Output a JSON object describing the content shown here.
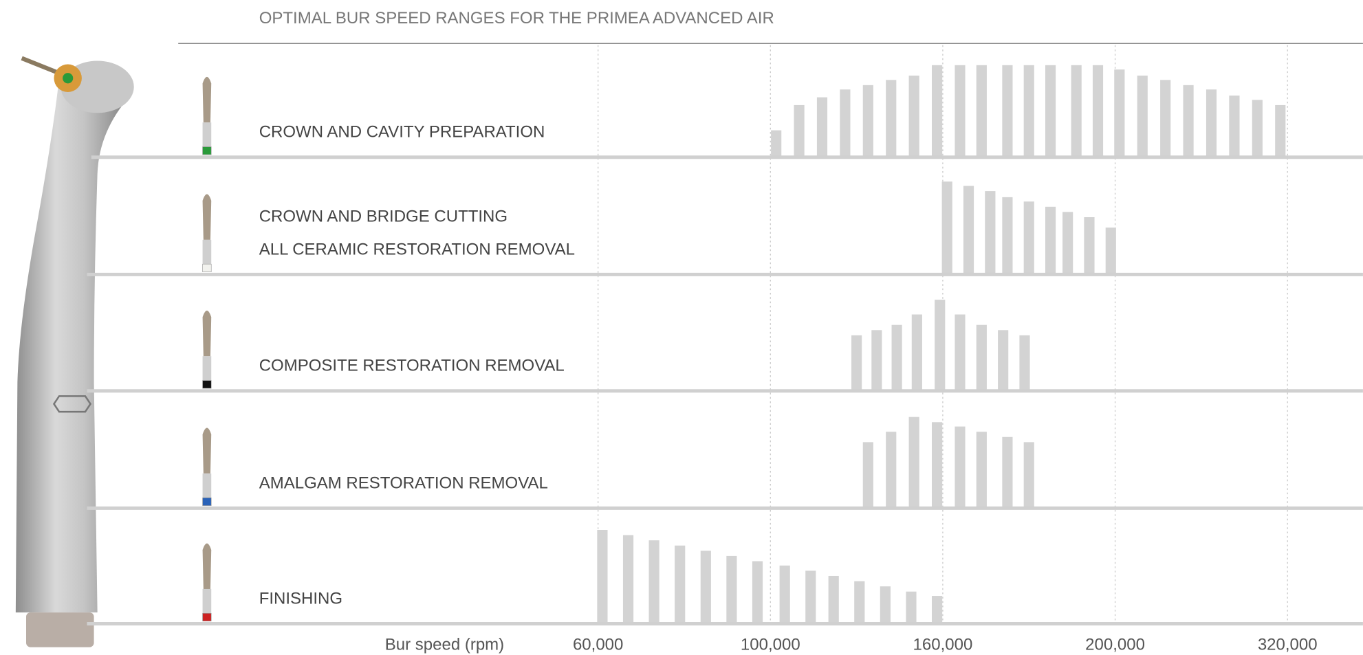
{
  "chart_data": {
    "type": "bar",
    "title": "OPTIMAL BUR SPEED RANGES FOR THE PRIMEA ADVANCED AIR",
    "xlabel": "Bur speed (rpm)",
    "color": "#d3d3d3",
    "xlim": [
      60000,
      320000
    ],
    "ylim": [
      0,
      130
    ],
    "xticks": [
      {
        "value": 60000,
        "label": "60,000"
      },
      {
        "value": 100000,
        "label": "100,000"
      },
      {
        "value": 160000,
        "label": "160,000"
      },
      {
        "value": 200000,
        "label": "200,000"
      },
      {
        "value": 320000,
        "label": "320,000"
      }
    ],
    "series": [
      {
        "labels": [
          "CROWN AND CAVITY PREPARATION"
        ],
        "bur_color": "#2a9a3a",
        "x": [
          102000,
          110000,
          118000,
          126000,
          134000,
          142000,
          150000,
          158000,
          164000,
          169000,
          175000,
          180000,
          185000,
          191000,
          196000,
          203000,
          219000,
          235000,
          251000,
          267000,
          283000,
          299000,
          315000
        ],
        "values": [
          31,
          60,
          69,
          78,
          83,
          89,
          94,
          106,
          106,
          106,
          106,
          106,
          106,
          106,
          106,
          101,
          94,
          89,
          83,
          78,
          71,
          66,
          60
        ]
      },
      {
        "labels": [
          "CROWN AND BRIDGE CUTTING",
          "ALL CERAMIC RESTORATION REMOVAL"
        ],
        "bur_color": "#f2f2ee",
        "x": [
          161000,
          166000,
          171000,
          175000,
          180000,
          185000,
          189000,
          194000,
          199000
        ],
        "values": [
          107,
          102,
          96,
          89,
          84,
          78,
          72,
          66,
          54
        ]
      },
      {
        "labels": [
          "COMPOSITE RESTORATION REMOVAL"
        ],
        "bur_color": "#111111",
        "x": [
          130000,
          137000,
          144000,
          151000,
          159000,
          164000,
          169000,
          174000,
          179000
        ],
        "values": [
          64,
          70,
          76,
          88,
          105,
          88,
          76,
          70,
          64
        ]
      },
      {
        "labels": [
          "AMALGAM RESTORATION REMOVAL"
        ],
        "bur_color": "#2a62b8",
        "x": [
          134000,
          142000,
          150000,
          158000,
          164000,
          169000,
          175000,
          180000
        ],
        "values": [
          76,
          88,
          105,
          99,
          94,
          88,
          82,
          76
        ]
      },
      {
        "labels": [
          "FINISHING"
        ],
        "bur_color": "#cc2222",
        "x": [
          61000,
          67000,
          73000,
          79000,
          85000,
          91000,
          97000,
          105000,
          114000,
          122000,
          131000,
          140000,
          149000,
          158000
        ],
        "values": [
          108,
          102,
          96,
          90,
          84,
          78,
          72,
          67,
          61,
          55,
          49,
          43,
          37,
          32
        ]
      }
    ]
  }
}
